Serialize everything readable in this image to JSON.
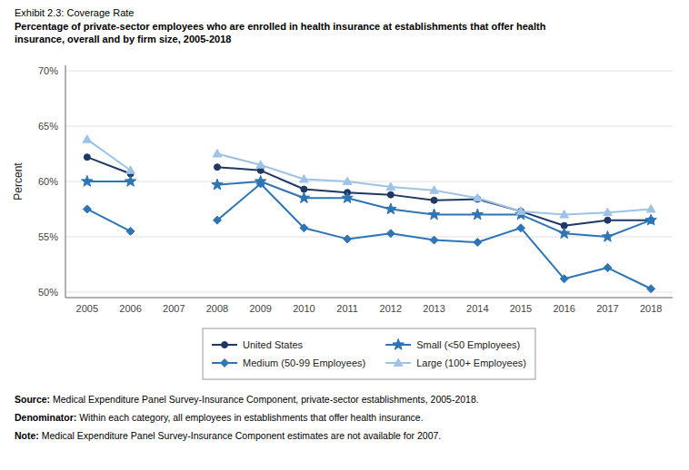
{
  "chart_data": {
    "type": "line",
    "title": "Exhibit 2.3: Coverage Rate",
    "subtitle": [
      "Percentage of private-sector employees who are enrolled in health insurance at establishments that offer health",
      "insurance, overall and by firm size, 2005-2018"
    ],
    "y_label": "Percent",
    "categories": [
      "2005",
      "2006",
      "2007",
      "2008",
      "2009",
      "2010",
      "2011",
      "2012",
      "2013",
      "2014",
      "2015",
      "2016",
      "2017",
      "2018"
    ],
    "series": [
      {
        "name": "United States",
        "color": "#1f3864",
        "marker": "circle",
        "values": [
          62.2,
          60.7,
          null,
          61.3,
          61.0,
          59.3,
          59.0,
          58.8,
          58.3,
          58.4,
          57.3,
          56.0,
          56.5,
          56.5
        ]
      },
      {
        "name": "Small (<50 Employees)",
        "color": "#2e75b6",
        "marker": "star",
        "values": [
          60.0,
          60.0,
          null,
          59.7,
          60.0,
          58.5,
          58.5,
          57.5,
          57.0,
          57.0,
          57.0,
          55.3,
          55.0,
          56.5
        ]
      },
      {
        "name": "Medium (50-99 Employees)",
        "color": "#2e75b6",
        "marker": "diamond",
        "values": [
          57.5,
          55.5,
          null,
          56.5,
          59.8,
          55.8,
          54.8,
          55.3,
          54.7,
          54.5,
          55.8,
          51.2,
          52.2,
          50.3
        ]
      },
      {
        "name": "Large (100+ Employees)",
        "color": "#9dc3e6",
        "marker": "triangle",
        "values": [
          63.8,
          61.0,
          null,
          62.5,
          61.5,
          60.2,
          60.0,
          59.5,
          59.2,
          58.5,
          57.3,
          57.0,
          57.2,
          57.5
        ]
      }
    ],
    "ylim": [
      49.5,
      70.5
    ],
    "yticks": [
      {
        "value": 50,
        "label": "50%"
      },
      {
        "value": 55,
        "label": "55%"
      },
      {
        "value": 60,
        "label": "60%"
      },
      {
        "value": 65,
        "label": "65%"
      },
      {
        "value": 70,
        "label": "70%"
      }
    ],
    "grid": true,
    "legend": "bottom",
    "annotations": [
      {
        "bold": "Source:",
        "text": " Medical Expenditure Panel Survey-Insurance Component, private-sector establishments, 2005-2018."
      },
      {
        "bold": "Denominator:",
        "text": " Within each category, all employees in establishments that offer health insurance."
      },
      {
        "bold": "Note:",
        "text": " Medical Expenditure Panel Survey-Insurance Component estimates are not available for 2007."
      }
    ]
  }
}
